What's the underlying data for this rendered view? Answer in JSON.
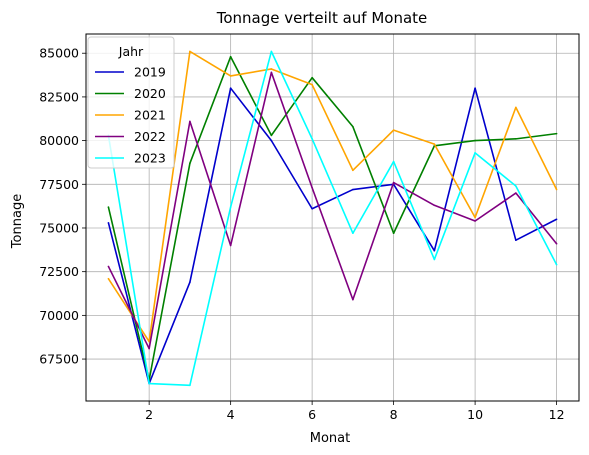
{
  "chart_data": {
    "type": "line",
    "title": "Tonnage verteilt auf Monate",
    "xlabel": "Monat",
    "ylabel": "Tonnage",
    "x": [
      1,
      2,
      3,
      4,
      5,
      6,
      7,
      8,
      9,
      10,
      11,
      12
    ],
    "xticks": [
      2,
      4,
      6,
      8,
      10,
      12
    ],
    "yticks": [
      67500,
      70000,
      72500,
      75000,
      77500,
      80000,
      82500,
      85000
    ],
    "xlim": [
      0.45,
      12.55
    ],
    "ylim": [
      65100,
      86100
    ],
    "grid": true,
    "legend": {
      "title": "Jahr",
      "position": "top-left"
    },
    "series": [
      {
        "name": "2019",
        "color": "#0000cc",
        "values": [
          75300,
          66100,
          71900,
          83000,
          80000,
          76100,
          77200,
          77500,
          73700,
          83000,
          74300,
          75500
        ]
      },
      {
        "name": "2020",
        "color": "#008000",
        "values": [
          76200,
          66300,
          78700,
          84800,
          80300,
          83600,
          80800,
          74700,
          79700,
          80000,
          80100,
          80400
        ]
      },
      {
        "name": "2021",
        "color": "#ffa500",
        "values": [
          72100,
          68500,
          85100,
          83700,
          84100,
          83200,
          78300,
          80600,
          79800,
          75600,
          81900,
          77200
        ]
      },
      {
        "name": "2022",
        "color": "#800080",
        "values": [
          72800,
          68100,
          81100,
          74000,
          83900,
          77300,
          70900,
          77600,
          76300,
          75400,
          77000,
          74100
        ]
      },
      {
        "name": "2023",
        "color": "#00ffff",
        "values": [
          80300,
          66100,
          66000,
          76200,
          85100,
          80100,
          74700,
          78800,
          73200,
          79300,
          77400,
          72900
        ]
      }
    ]
  }
}
